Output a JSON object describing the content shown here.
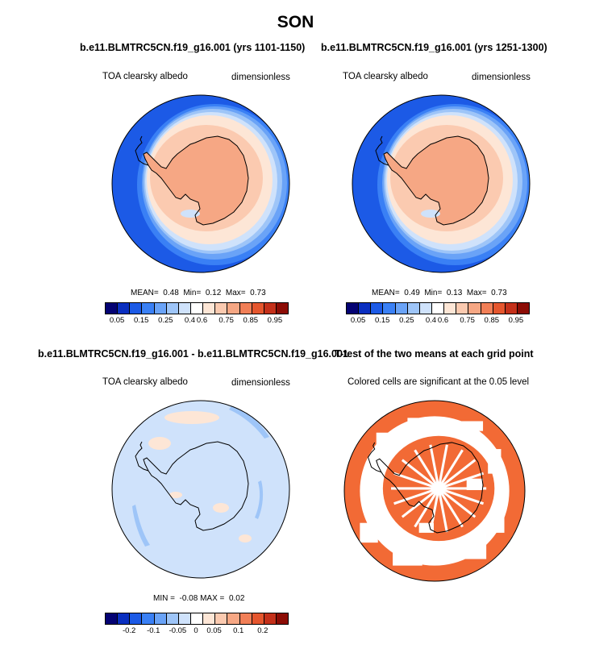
{
  "figure": {
    "title": "SON"
  },
  "panels": {
    "p1": {
      "title": "b.e11.BLMTRC5CN.f19_g16.001 (yrs 1101-1150)",
      "left_label": "TOA clearsky albedo",
      "right_label": "dimensionless",
      "stats": {
        "mean_label": "MEAN=",
        "mean": "0.48",
        "min_label": "Min=",
        "min": "0.12",
        "max_label": "Max=",
        "max": "0.73"
      }
    },
    "p2": {
      "title": "b.e11.BLMTRC5CN.f19_g16.001 (yrs 1251-1300)",
      "left_label": "TOA clearsky albedo",
      "right_label": "dimensionless",
      "stats": {
        "mean_label": "MEAN=",
        "mean": "0.49",
        "min_label": "Min=",
        "min": "0.13",
        "max_label": "Max=",
        "max": "0.73"
      }
    },
    "p3": {
      "title": "b.e11.BLMTRC5CN.f19_g16.001 - b.e11.BLMTRC5CN.f19_g16.001",
      "left_label": "TOA clearsky albedo",
      "right_label": "dimensionless",
      "stats": {
        "min_label": "MIN =",
        "min": "-0.08",
        "max_label": "MAX =",
        "max": "0.02"
      }
    },
    "p4": {
      "title": "T-test of the two means at each grid point",
      "subtitle": "Colored cells are significant at the 0.05 level",
      "cell_color": "#f26a35"
    }
  },
  "chart_data": [
    {
      "type": "heatmap",
      "projection": "south-polar-stereographic",
      "variable": "TOA clearsky albedo",
      "units": "dimensionless",
      "mean": 0.48,
      "min": 0.12,
      "max": 0.73,
      "colorbar": {
        "ticks": [
          "0.05",
          "0.15",
          "0.25",
          "0.4",
          "0.6",
          "0.75",
          "0.85",
          "0.95"
        ],
        "colors": [
          "#040273",
          "#0a2fc0",
          "#1c5ae6",
          "#3a80f5",
          "#6aa3f7",
          "#9ec5f8",
          "#cfe2fb",
          "#ffffff",
          "#fde6d6",
          "#fbcab0",
          "#f6a784",
          "#f17f57",
          "#e5562e",
          "#c4301a",
          "#8c0c05"
        ]
      }
    },
    {
      "type": "heatmap",
      "projection": "south-polar-stereographic",
      "variable": "TOA clearsky albedo",
      "units": "dimensionless",
      "mean": 0.49,
      "min": 0.13,
      "max": 0.73,
      "colorbar": {
        "ticks": [
          "0.05",
          "0.15",
          "0.25",
          "0.4",
          "0.6",
          "0.75",
          "0.85",
          "0.95"
        ],
        "colors": [
          "#040273",
          "#0a2fc0",
          "#1c5ae6",
          "#3a80f5",
          "#6aa3f7",
          "#9ec5f8",
          "#cfe2fb",
          "#ffffff",
          "#fde6d6",
          "#fbcab0",
          "#f6a784",
          "#f17f57",
          "#e5562e",
          "#c4301a",
          "#8c0c05"
        ]
      }
    },
    {
      "type": "heatmap",
      "projection": "south-polar-stereographic",
      "variable": "TOA clearsky albedo",
      "units": "dimensionless",
      "min": -0.08,
      "max": 0.02,
      "colorbar": {
        "ticks": [
          "-0.2",
          "-0.1",
          "-0.05",
          "0",
          "0.05",
          "0.1",
          "0.2"
        ],
        "colors": [
          "#040273",
          "#0a2fc0",
          "#1c5ae6",
          "#3a80f5",
          "#6aa3f7",
          "#9ec5f8",
          "#cfe2fb",
          "#ffffff",
          "#fde6d6",
          "#fbcab0",
          "#f6a784",
          "#f17f57",
          "#e5562e",
          "#c4301a",
          "#8c0c05"
        ]
      }
    },
    {
      "type": "heatmap",
      "projection": "south-polar-stereographic",
      "significance_level": 0.05
    }
  ]
}
